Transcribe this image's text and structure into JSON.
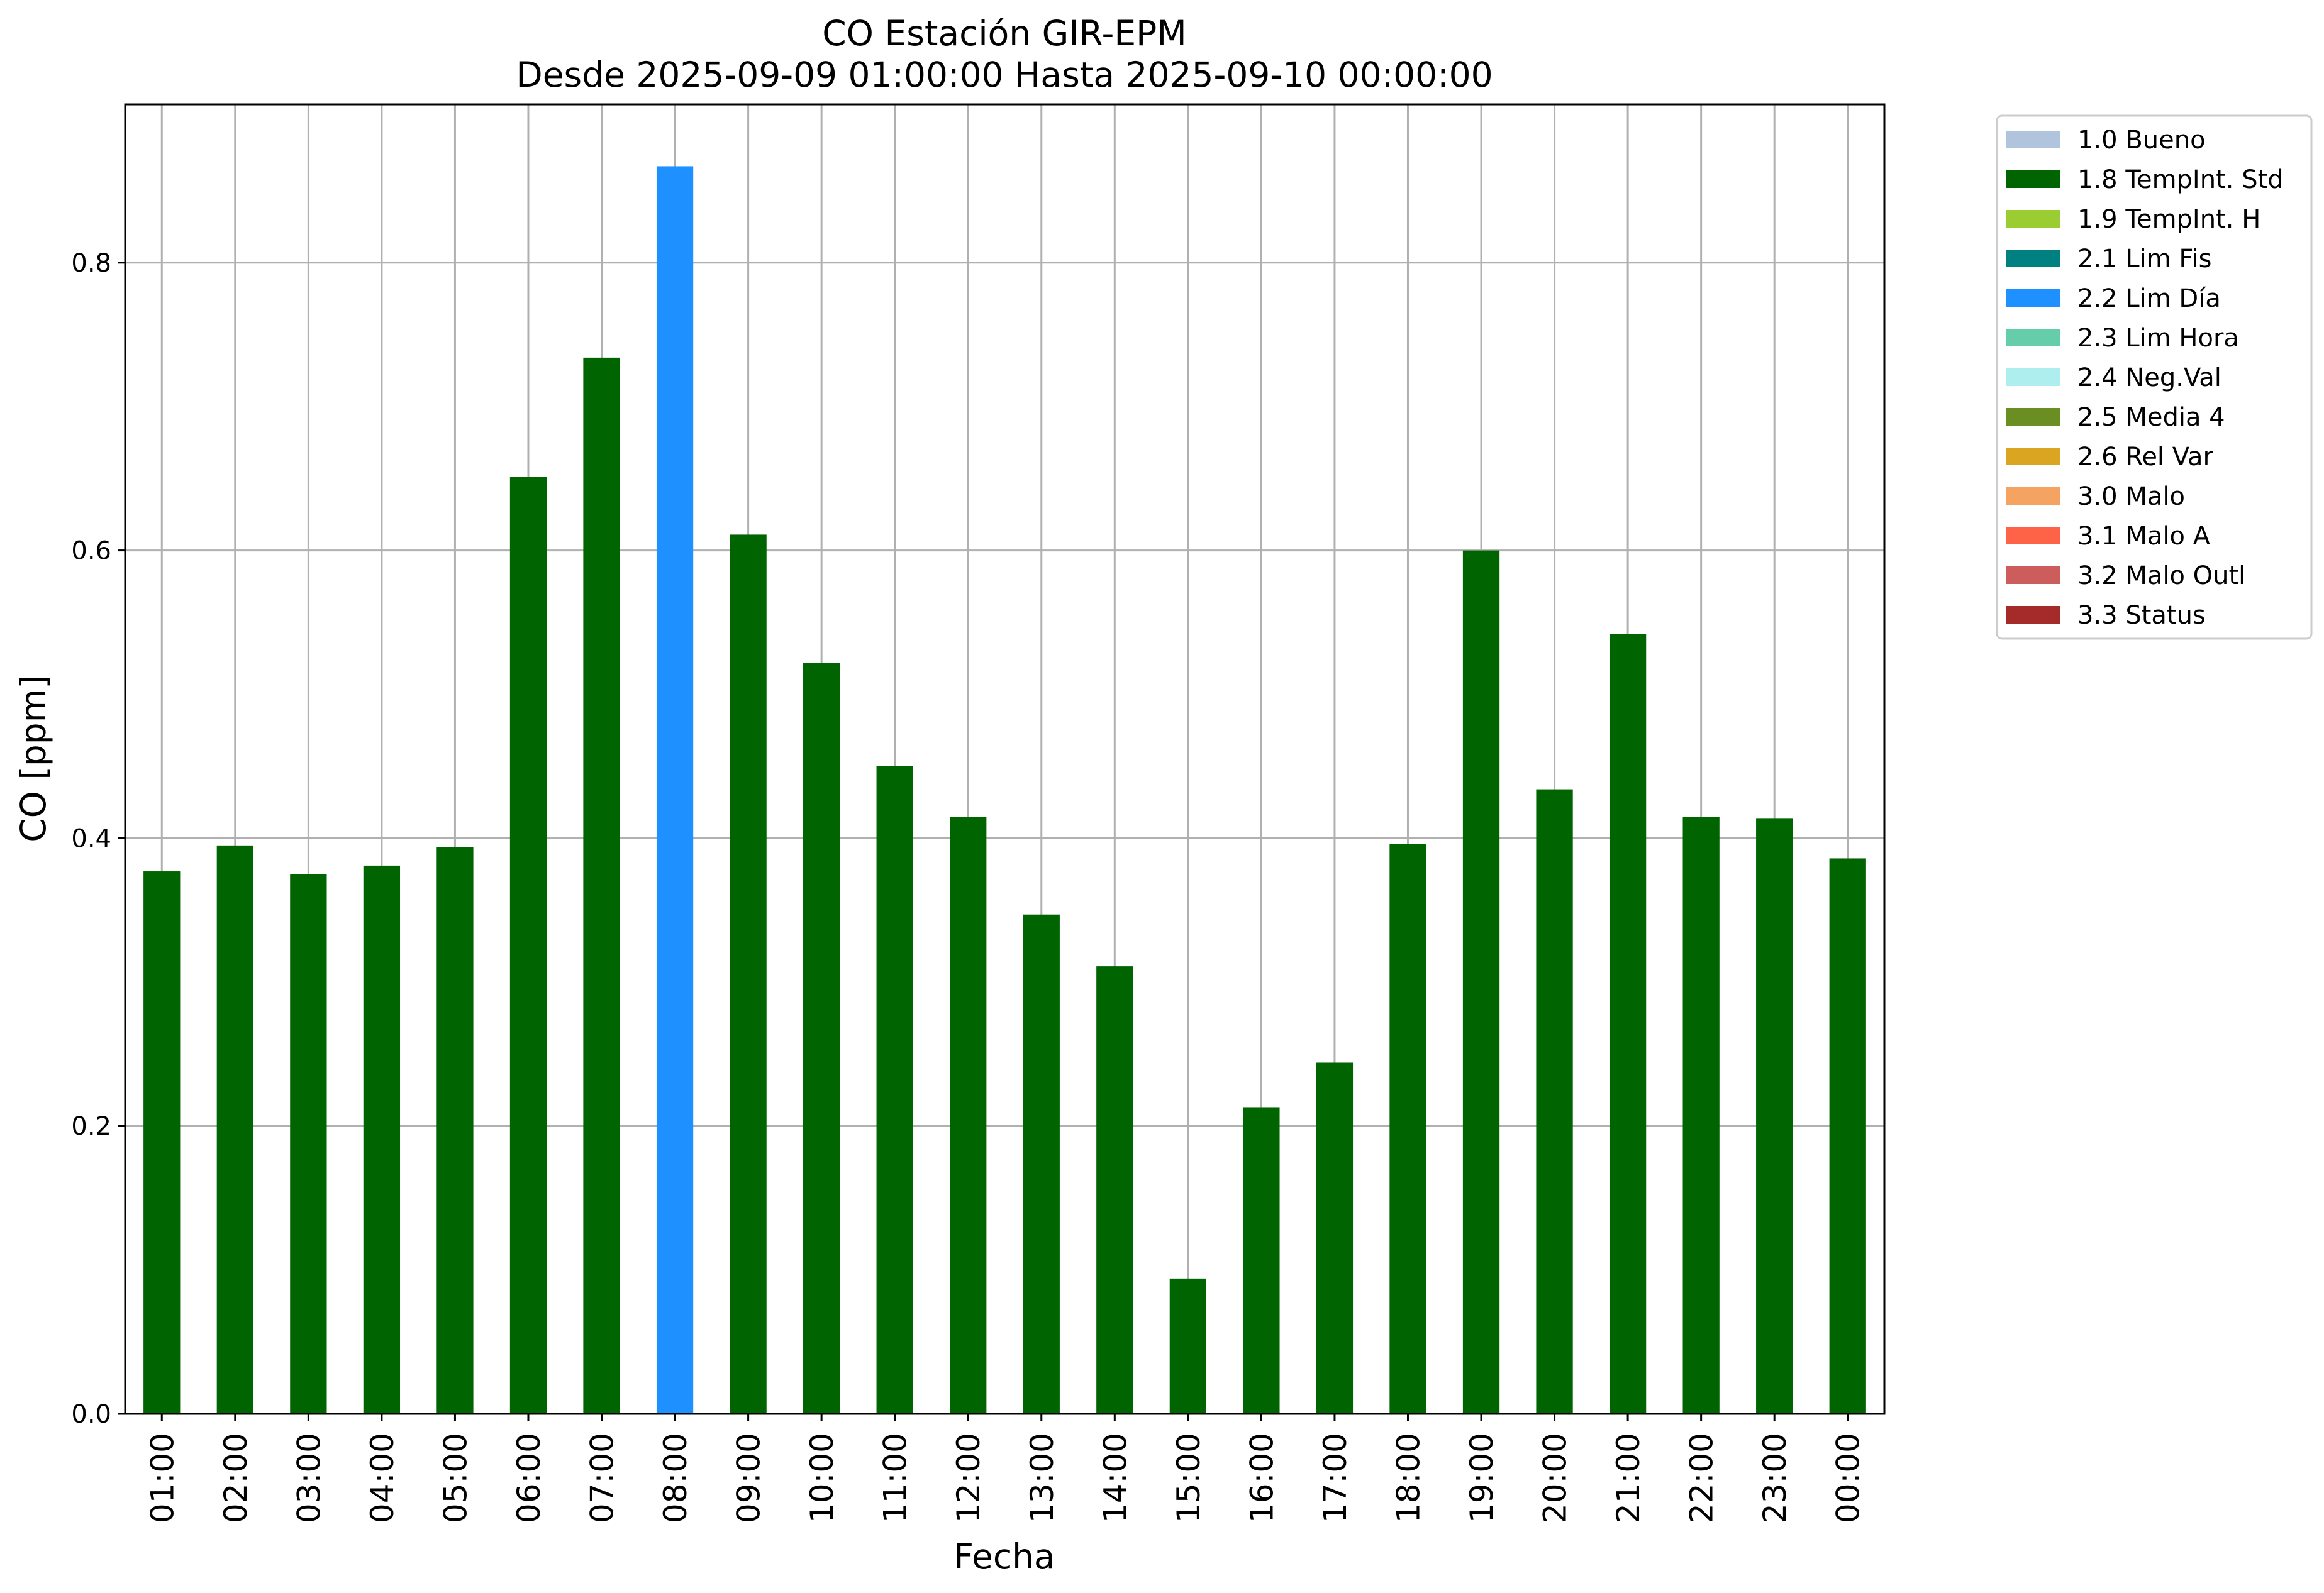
{
  "chart_data": {
    "type": "bar",
    "title": "CO Estación GIR-EPM",
    "subtitle": "Desde 2025-09-09 01:00:00 Hasta 2025-09-10 00:00:00",
    "xlabel": "Fecha",
    "ylabel": "CO [ppm]",
    "ylim": [
      0,
      0.91
    ],
    "yticks": [
      "0.0",
      "0.2",
      "0.4",
      "0.6",
      "0.8"
    ],
    "ytick_values": [
      0,
      0.2,
      0.4,
      0.6,
      0.8
    ],
    "grid": true,
    "legend_position": "outside-top-right",
    "categories": [
      "01:00",
      "02:00",
      "03:00",
      "04:00",
      "05:00",
      "06:00",
      "07:00",
      "08:00",
      "09:00",
      "10:00",
      "11:00",
      "12:00",
      "13:00",
      "14:00",
      "15:00",
      "16:00",
      "17:00",
      "18:00",
      "19:00",
      "20:00",
      "21:00",
      "22:00",
      "23:00",
      "00:00"
    ],
    "values": [
      0.377,
      0.395,
      0.375,
      0.381,
      0.394,
      0.651,
      0.734,
      0.867,
      0.611,
      0.522,
      0.45,
      0.415,
      0.347,
      0.311,
      0.094,
      0.213,
      0.244,
      0.396,
      0.6,
      0.434,
      0.542,
      0.415,
      0.414,
      0.386
    ],
    "flags": [
      "1.8 TempInt. Std",
      "1.8 TempInt. Std",
      "1.8 TempInt. Std",
      "1.8 TempInt. Std",
      "1.8 TempInt. Std",
      "1.8 TempInt. Std",
      "1.8 TempInt. Std",
      "2.2 Lim Día",
      "1.8 TempInt. Std",
      "1.8 TempInt. Std",
      "1.8 TempInt. Std",
      "1.8 TempInt. Std",
      "1.8 TempInt. Std",
      "1.8 TempInt. Std",
      "1.8 TempInt. Std",
      "1.8 TempInt. Std",
      "1.8 TempInt. Std",
      "1.8 TempInt. Std",
      "1.8 TempInt. Std",
      "1.8 TempInt. Std",
      "1.8 TempInt. Std",
      "1.8 TempInt. Std",
      "1.8 TempInt. Std",
      "1.8 TempInt. Std"
    ],
    "legend": [
      {
        "label": "1.0 Bueno",
        "color": "#b0c4de"
      },
      {
        "label": "1.8 TempInt. Std",
        "color": "#006400"
      },
      {
        "label": "1.9 TempInt. H",
        "color": "#9acd32"
      },
      {
        "label": "2.1 Lim Fis",
        "color": "#008080"
      },
      {
        "label": "2.2 Lim Día",
        "color": "#1e90ff"
      },
      {
        "label": "2.3 Lim Hora",
        "color": "#66cdaa"
      },
      {
        "label": "2.4 Neg.Val",
        "color": "#afeeee"
      },
      {
        "label": "2.5 Media 4",
        "color": "#6b8e23"
      },
      {
        "label": "2.6 Rel Var",
        "color": "#daa520"
      },
      {
        "label": "3.0 Malo",
        "color": "#f4a460"
      },
      {
        "label": "3.1 Malo A",
        "color": "#ff6347"
      },
      {
        "label": "3.2 Malo Outl",
        "color": "#cd5c5c"
      },
      {
        "label": "3.3 Status",
        "color": "#a52a2a"
      }
    ]
  }
}
